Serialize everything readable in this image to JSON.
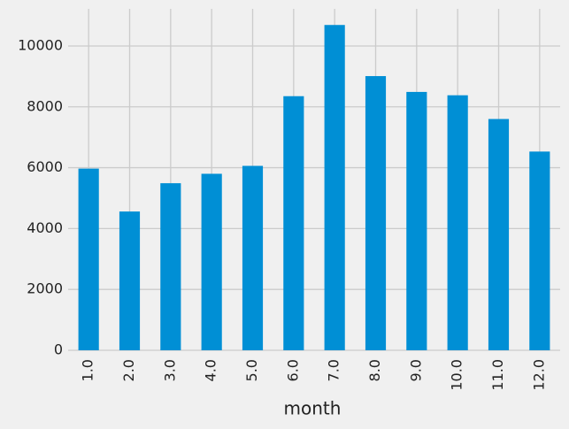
{
  "chart_data": {
    "type": "bar",
    "xlabel": "month",
    "categories": [
      "1.0",
      "2.0",
      "3.0",
      "4.0",
      "5.0",
      "6.0",
      "7.0",
      "8.0",
      "9.0",
      "10.0",
      "11.0",
      "12.0"
    ],
    "values": [
      5970,
      4560,
      5490,
      5800,
      6060,
      8350,
      10690,
      9010,
      8490,
      8380,
      7600,
      6530
    ],
    "color": "#008fd5",
    "ylim": [
      0,
      11220
    ],
    "yticks": [
      0,
      2000,
      4000,
      6000,
      8000,
      10000
    ],
    "grid": true
  }
}
